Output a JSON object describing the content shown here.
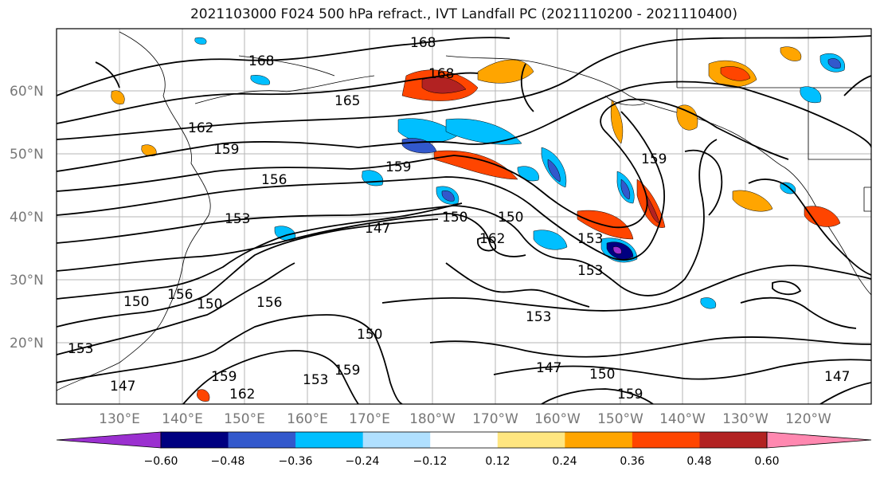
{
  "title": "2021103000 F024 500 hPa refract., IVT Landfall PC (2021110200 - 2021110400)",
  "lat_labels": [
    "60°N",
    "50°N",
    "40°N",
    "30°N",
    "20°N"
  ],
  "lon_labels": [
    "130°E",
    "140°E",
    "150°E",
    "160°E",
    "170°E",
    "180°W",
    "170°W",
    "160°W",
    "150°W",
    "140°W",
    "130°W",
    "120°W"
  ],
  "contour_labels": [
    "168",
    "168",
    "168",
    "165",
    "162",
    "159",
    "159",
    "156",
    "153",
    "147",
    "150",
    "156",
    "150",
    "153",
    "147",
    "150",
    "153",
    "153",
    "153",
    "159",
    "150",
    "162",
    "156",
    "150",
    "153",
    "147",
    "150",
    "159",
    "159",
    "162",
    "159",
    "147"
  ],
  "colorbar": {
    "colors": [
      "#9b30d0",
      "#000080",
      "#3258cc",
      "#00bfff",
      "#b0e0ff",
      "#ffffff",
      "#ffe680",
      "#ffa500",
      "#ff4500",
      "#b22222",
      "#ff88b0"
    ],
    "tick_labels": [
      "−0.60",
      "−0.48",
      "−0.36",
      "−0.24",
      "−0.12",
      "0.12",
      "0.24",
      "0.36",
      "0.48",
      "0.60"
    ]
  }
}
